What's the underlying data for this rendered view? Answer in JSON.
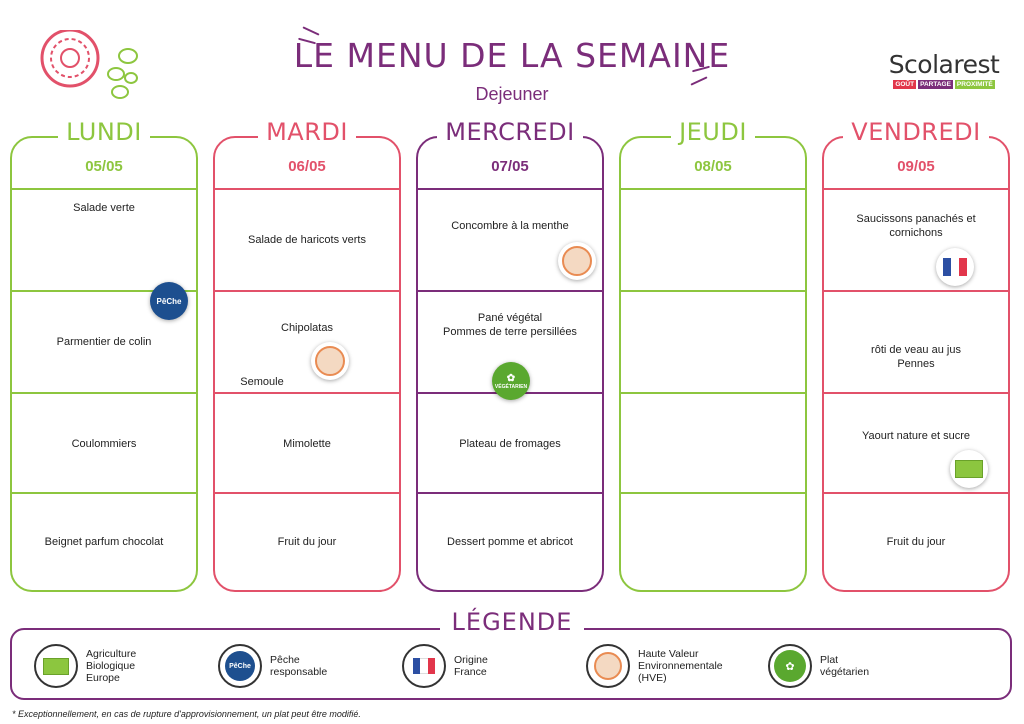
{
  "header": {
    "title": "LE MENU DE LA SEMAINE",
    "subtitle": "Dejeuner"
  },
  "brand": {
    "name": "Scolarest",
    "tags": [
      "GOÛT",
      "PARTAGE",
      "PROXIMITÉ"
    ],
    "tag_colors": [
      "#e2364b",
      "#7b2d7a",
      "#8dc63f"
    ]
  },
  "colors": {
    "green": "#8dc63f",
    "pink": "#e2516a",
    "purple": "#7b2d7a"
  },
  "days": [
    {
      "name": "LUNDI",
      "date": "05/05",
      "color": "#8dc63f",
      "items": [
        "Salade verte",
        "Parmentier de colin",
        "Coulommiers",
        "Beignet parfum chocolat"
      ]
    },
    {
      "name": "MARDI",
      "date": "06/05",
      "color": "#e2516a",
      "items": [
        "Salade de haricots verts",
        "Chipolatas",
        "Semoule",
        "Mimolette",
        "Fruit du jour"
      ]
    },
    {
      "name": "MERCREDI",
      "date": "07/05",
      "color": "#7b2d7a",
      "items": [
        "Concombre à la menthe",
        "Pané végétal",
        "Pommes de terre persillées",
        "Plateau de fromages",
        "Dessert pomme et abricot"
      ]
    },
    {
      "name": "JEUDI",
      "date": "08/05",
      "color": "#8dc63f",
      "items": []
    },
    {
      "name": "VENDREDI",
      "date": "09/05",
      "color": "#e2516a",
      "items": [
        "Saucissons panachés et cornichons",
        "rôti de veau au jus",
        "Pennes",
        "Yaourt nature et sucre",
        "Fruit du jour"
      ]
    }
  ],
  "badges": {
    "peche": "PêChe",
    "veg": "VÉGÉTARIEN"
  },
  "legend": {
    "title": "LÉGENDE",
    "items": [
      {
        "icon": "bio-icon",
        "label": "Agriculture Biologique Europe"
      },
      {
        "icon": "peche-icon",
        "label": "Pêche responsable"
      },
      {
        "icon": "france-flag-icon",
        "label": "Origine France"
      },
      {
        "icon": "hve-icon",
        "label": "Haute Valeur Environnementale (HVE)"
      },
      {
        "icon": "vegetarian-icon",
        "label": "Plat végétarien"
      }
    ]
  },
  "footnote": "* Exceptionnellement, en cas de rupture d'approvisionnement, un plat peut être modifié."
}
